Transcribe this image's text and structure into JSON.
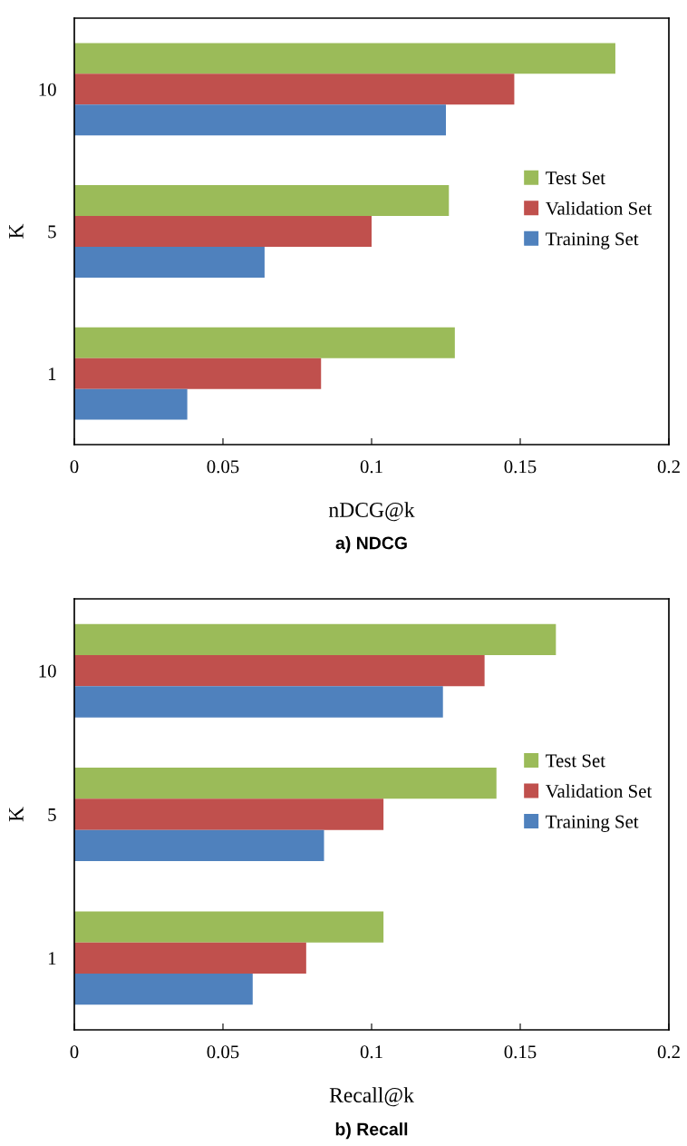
{
  "chart_data": [
    {
      "type": "bar",
      "orientation": "horizontal",
      "title": "a) NDCG",
      "xlabel": "nDCG@k",
      "ylabel": "K",
      "categories": [
        "10",
        "5",
        "1"
      ],
      "series": [
        {
          "name": "Test Set",
          "color": "#9bbb59",
          "values": [
            0.182,
            0.126,
            0.128
          ]
        },
        {
          "name": "Validation Set",
          "color": "#c0504d",
          "values": [
            0.148,
            0.1,
            0.083
          ]
        },
        {
          "name": "Training Set",
          "color": "#4f81bd",
          "values": [
            0.125,
            0.064,
            0.038
          ]
        }
      ],
      "xlim": [
        0,
        0.2
      ],
      "xticks": [
        0,
        0.05,
        0.1,
        0.15,
        0.2
      ],
      "grid": false,
      "legend": "right"
    },
    {
      "type": "bar",
      "orientation": "horizontal",
      "title": "b) Recall",
      "xlabel": "Recall@k",
      "ylabel": "K",
      "categories": [
        "10",
        "5",
        "1"
      ],
      "series": [
        {
          "name": "Test Set",
          "color": "#9bbb59",
          "values": [
            0.162,
            0.142,
            0.104
          ]
        },
        {
          "name": "Validation Set",
          "color": "#c0504d",
          "values": [
            0.138,
            0.104,
            0.078
          ]
        },
        {
          "name": "Training Set",
          "color": "#4f81bd",
          "values": [
            0.124,
            0.084,
            0.06
          ]
        }
      ],
      "xlim": [
        0,
        0.2
      ],
      "xticks": [
        0,
        0.05,
        0.1,
        0.15,
        0.2
      ],
      "grid": false,
      "legend": "right"
    }
  ]
}
